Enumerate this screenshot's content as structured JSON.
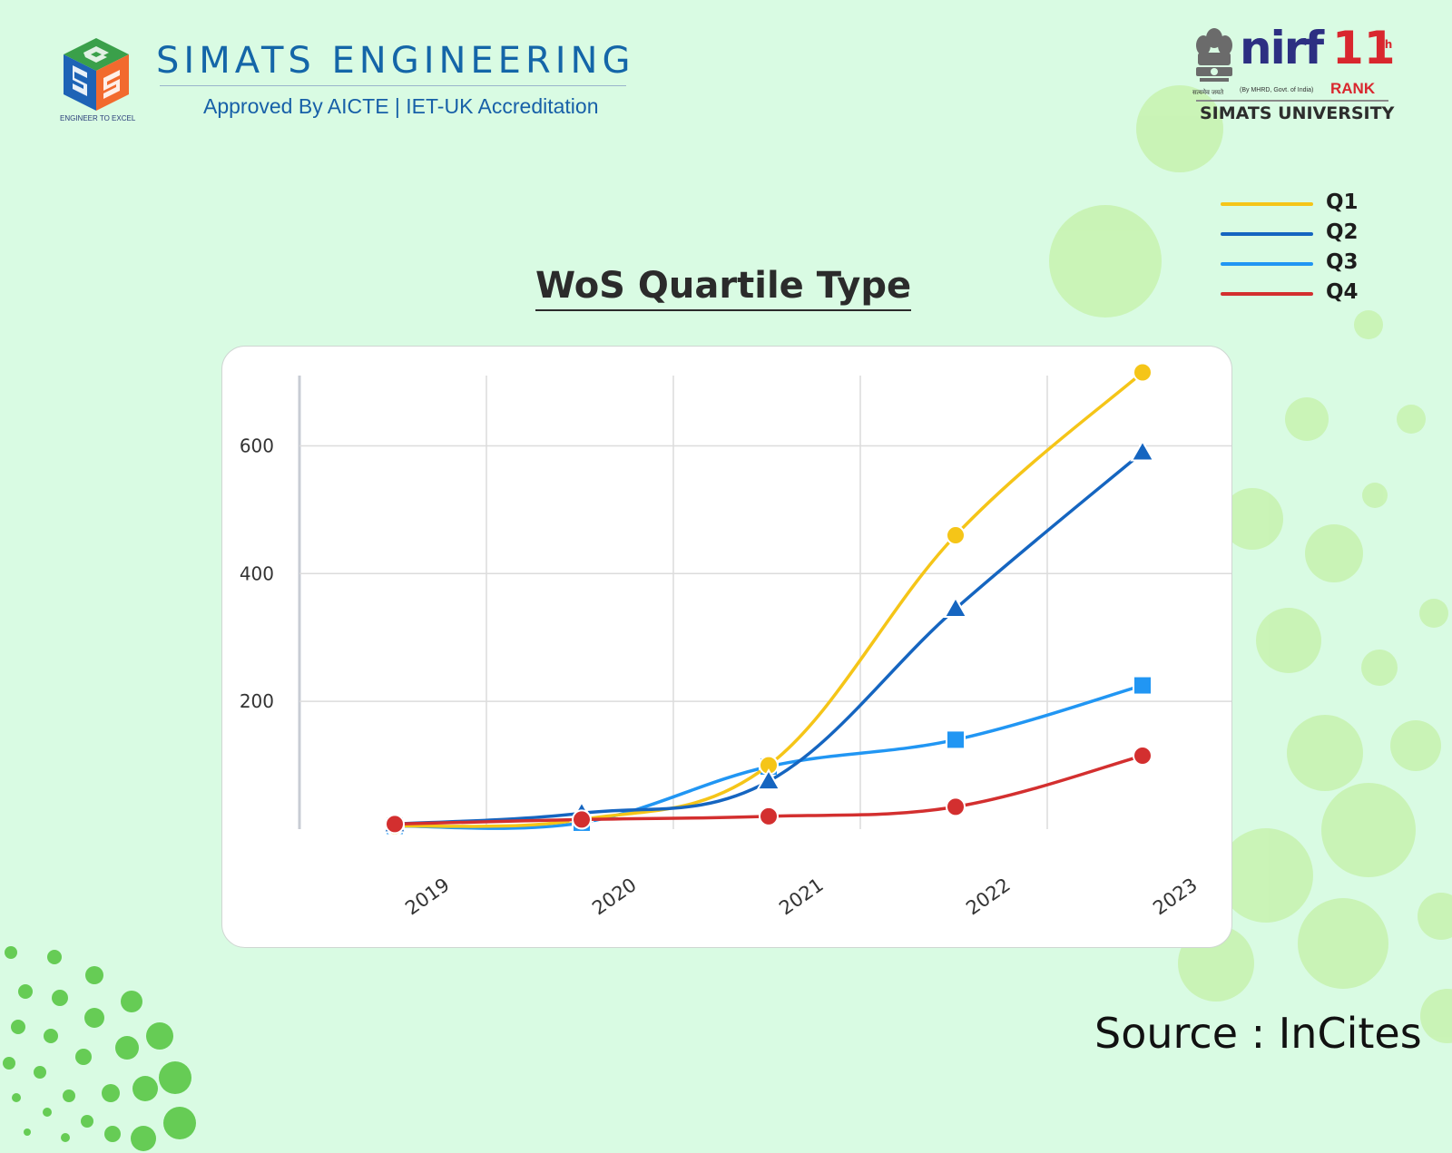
{
  "header": {
    "brand_name": "SIMATS ENGINEERING",
    "brand_sub": "Approved By AICTE | IET-UK Accreditation",
    "brand_tagline": "ENGINEER TO EXCEL",
    "nirf_word": "nirf",
    "nirf_rank": "11",
    "nirf_rank_suffix": "th",
    "nirf_rank_label": "RANK",
    "nirf_note": "(By MHRD, Govt. of India)",
    "emblem_caption": "सत्यमेव जयते",
    "university": "SIMATS UNIVERSITY"
  },
  "legend": [
    {
      "label": "Q1",
      "color": "#f5c518"
    },
    {
      "label": "Q2",
      "color": "#1565c0"
    },
    {
      "label": "Q3",
      "color": "#2196f3"
    },
    {
      "label": "Q4",
      "color": "#d32f2f"
    }
  ],
  "chart_data": {
    "type": "line",
    "title": "WoS Quartile Type",
    "xlabel": "",
    "ylabel": "",
    "categories": [
      "2019",
      "2020",
      "2021",
      "2022",
      "2023"
    ],
    "yticks": [
      200,
      400,
      600
    ],
    "ylim": [
      0,
      710
    ],
    "grid": true,
    "smooth": true,
    "legend_position": "top-right",
    "series": [
      {
        "name": "Q1",
        "color": "#f5c518",
        "marker": "circle",
        "values": [
          5,
          15,
          100,
          460,
          715
        ]
      },
      {
        "name": "Q2",
        "color": "#1565c0",
        "marker": "triangle",
        "values": [
          8,
          25,
          75,
          345,
          590
        ]
      },
      {
        "name": "Q3",
        "color": "#2196f3",
        "marker": "square",
        "values": [
          5,
          10,
          98,
          140,
          225
        ]
      },
      {
        "name": "Q4",
        "color": "#d32f2f",
        "marker": "circle",
        "values": [
          8,
          15,
          20,
          35,
          115
        ]
      }
    ]
  },
  "footer": {
    "source": "Source : InCites"
  }
}
